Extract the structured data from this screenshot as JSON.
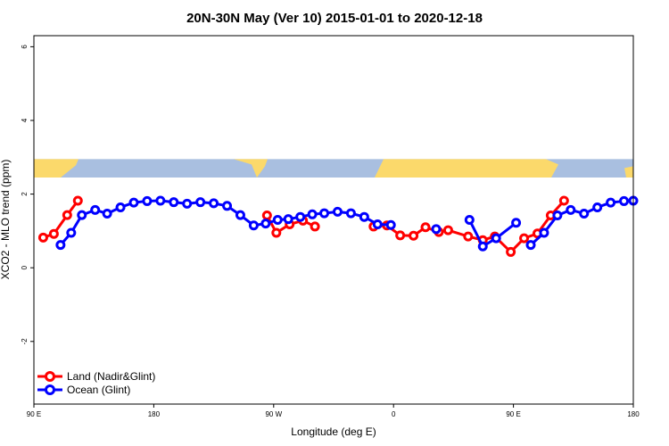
{
  "chart_data": {
    "type": "line",
    "title": "20N-30N May (Ver 10)   2015-01-01 to 2020-12-18",
    "xlabel": "Longitude (deg E)",
    "ylabel": "XCO2 - MLO trend (ppm)",
    "xlim": [
      90,
      540
    ],
    "ylim": [
      -3.7,
      6.3
    ],
    "xticks": [
      {
        "value": 90,
        "label": "90 E"
      },
      {
        "value": 180,
        "label": "180"
      },
      {
        "value": 270,
        "label": "90 W"
      },
      {
        "value": 360,
        "label": "0"
      },
      {
        "value": 450,
        "label": "90 E"
      },
      {
        "value": 540,
        "label": "180"
      }
    ],
    "yticks": [
      {
        "value": -2,
        "label": "-2"
      },
      {
        "value": 0,
        "label": "0"
      },
      {
        "value": 2,
        "label": "2"
      },
      {
        "value": 4,
        "label": "4"
      },
      {
        "value": 6,
        "label": "6"
      }
    ],
    "map_band": {
      "ymin": 2.45,
      "ymax": 2.95,
      "ocean_color": "#a9bfe0",
      "land_color": "#fbd96b"
    },
    "legend": {
      "placement": "bottom-left"
    },
    "series": [
      {
        "name": "Land (Nadir&Glint)",
        "color": "#ff0000",
        "segments": [
          {
            "x": [
              97,
              105,
              115,
              123
            ],
            "y": [
              0.82,
              0.92,
              1.43,
              1.82
            ]
          },
          {
            "x": [
              265,
              272,
              282,
              292,
              301
            ],
            "y": [
              1.42,
              0.95,
              1.18,
              1.28,
              1.12
            ]
          },
          {
            "x": [
              345,
              355,
              365,
              375,
              384,
              394,
              401,
              416,
              427,
              436,
              448,
              458,
              468,
              478,
              488
            ],
            "y": [
              1.12,
              1.15,
              0.88,
              0.87,
              1.1,
              0.97,
              1.02,
              0.85,
              0.75,
              0.85,
              0.43,
              0.8,
              0.93,
              1.42,
              1.82
            ]
          }
        ]
      },
      {
        "name": "Ocean (Glint)",
        "color": "#0000ff",
        "segments": [
          {
            "x": [
              110,
              118,
              126,
              136,
              145,
              155,
              165,
              175,
              185,
              195,
              205,
              215,
              225,
              235,
              245,
              255,
              264,
              273,
              281,
              290,
              299,
              308,
              318,
              328,
              338,
              348,
              358
            ],
            "y": [
              0.62,
              0.95,
              1.43,
              1.57,
              1.47,
              1.64,
              1.77,
              1.81,
              1.82,
              1.78,
              1.74,
              1.78,
              1.75,
              1.68,
              1.43,
              1.15,
              1.2,
              1.3,
              1.32,
              1.38,
              1.45,
              1.48,
              1.52,
              1.48,
              1.38,
              1.18,
              1.16
            ]
          },
          {
            "x": [
              392
            ],
            "y": [
              1.05
            ]
          },
          {
            "x": [
              417,
              427,
              437,
              452
            ],
            "y": [
              1.3,
              0.58,
              0.8,
              1.22
            ]
          },
          {
            "x": [
              463,
              473,
              483,
              493,
              503,
              513,
              523,
              533
            ],
            "y": [
              0.62,
              0.95,
              1.42,
              1.57,
              1.47,
              1.64,
              1.77,
              1.81
            ]
          },
          {
            "x": [
              540
            ],
            "y": [
              1.82
            ]
          }
        ]
      }
    ]
  }
}
